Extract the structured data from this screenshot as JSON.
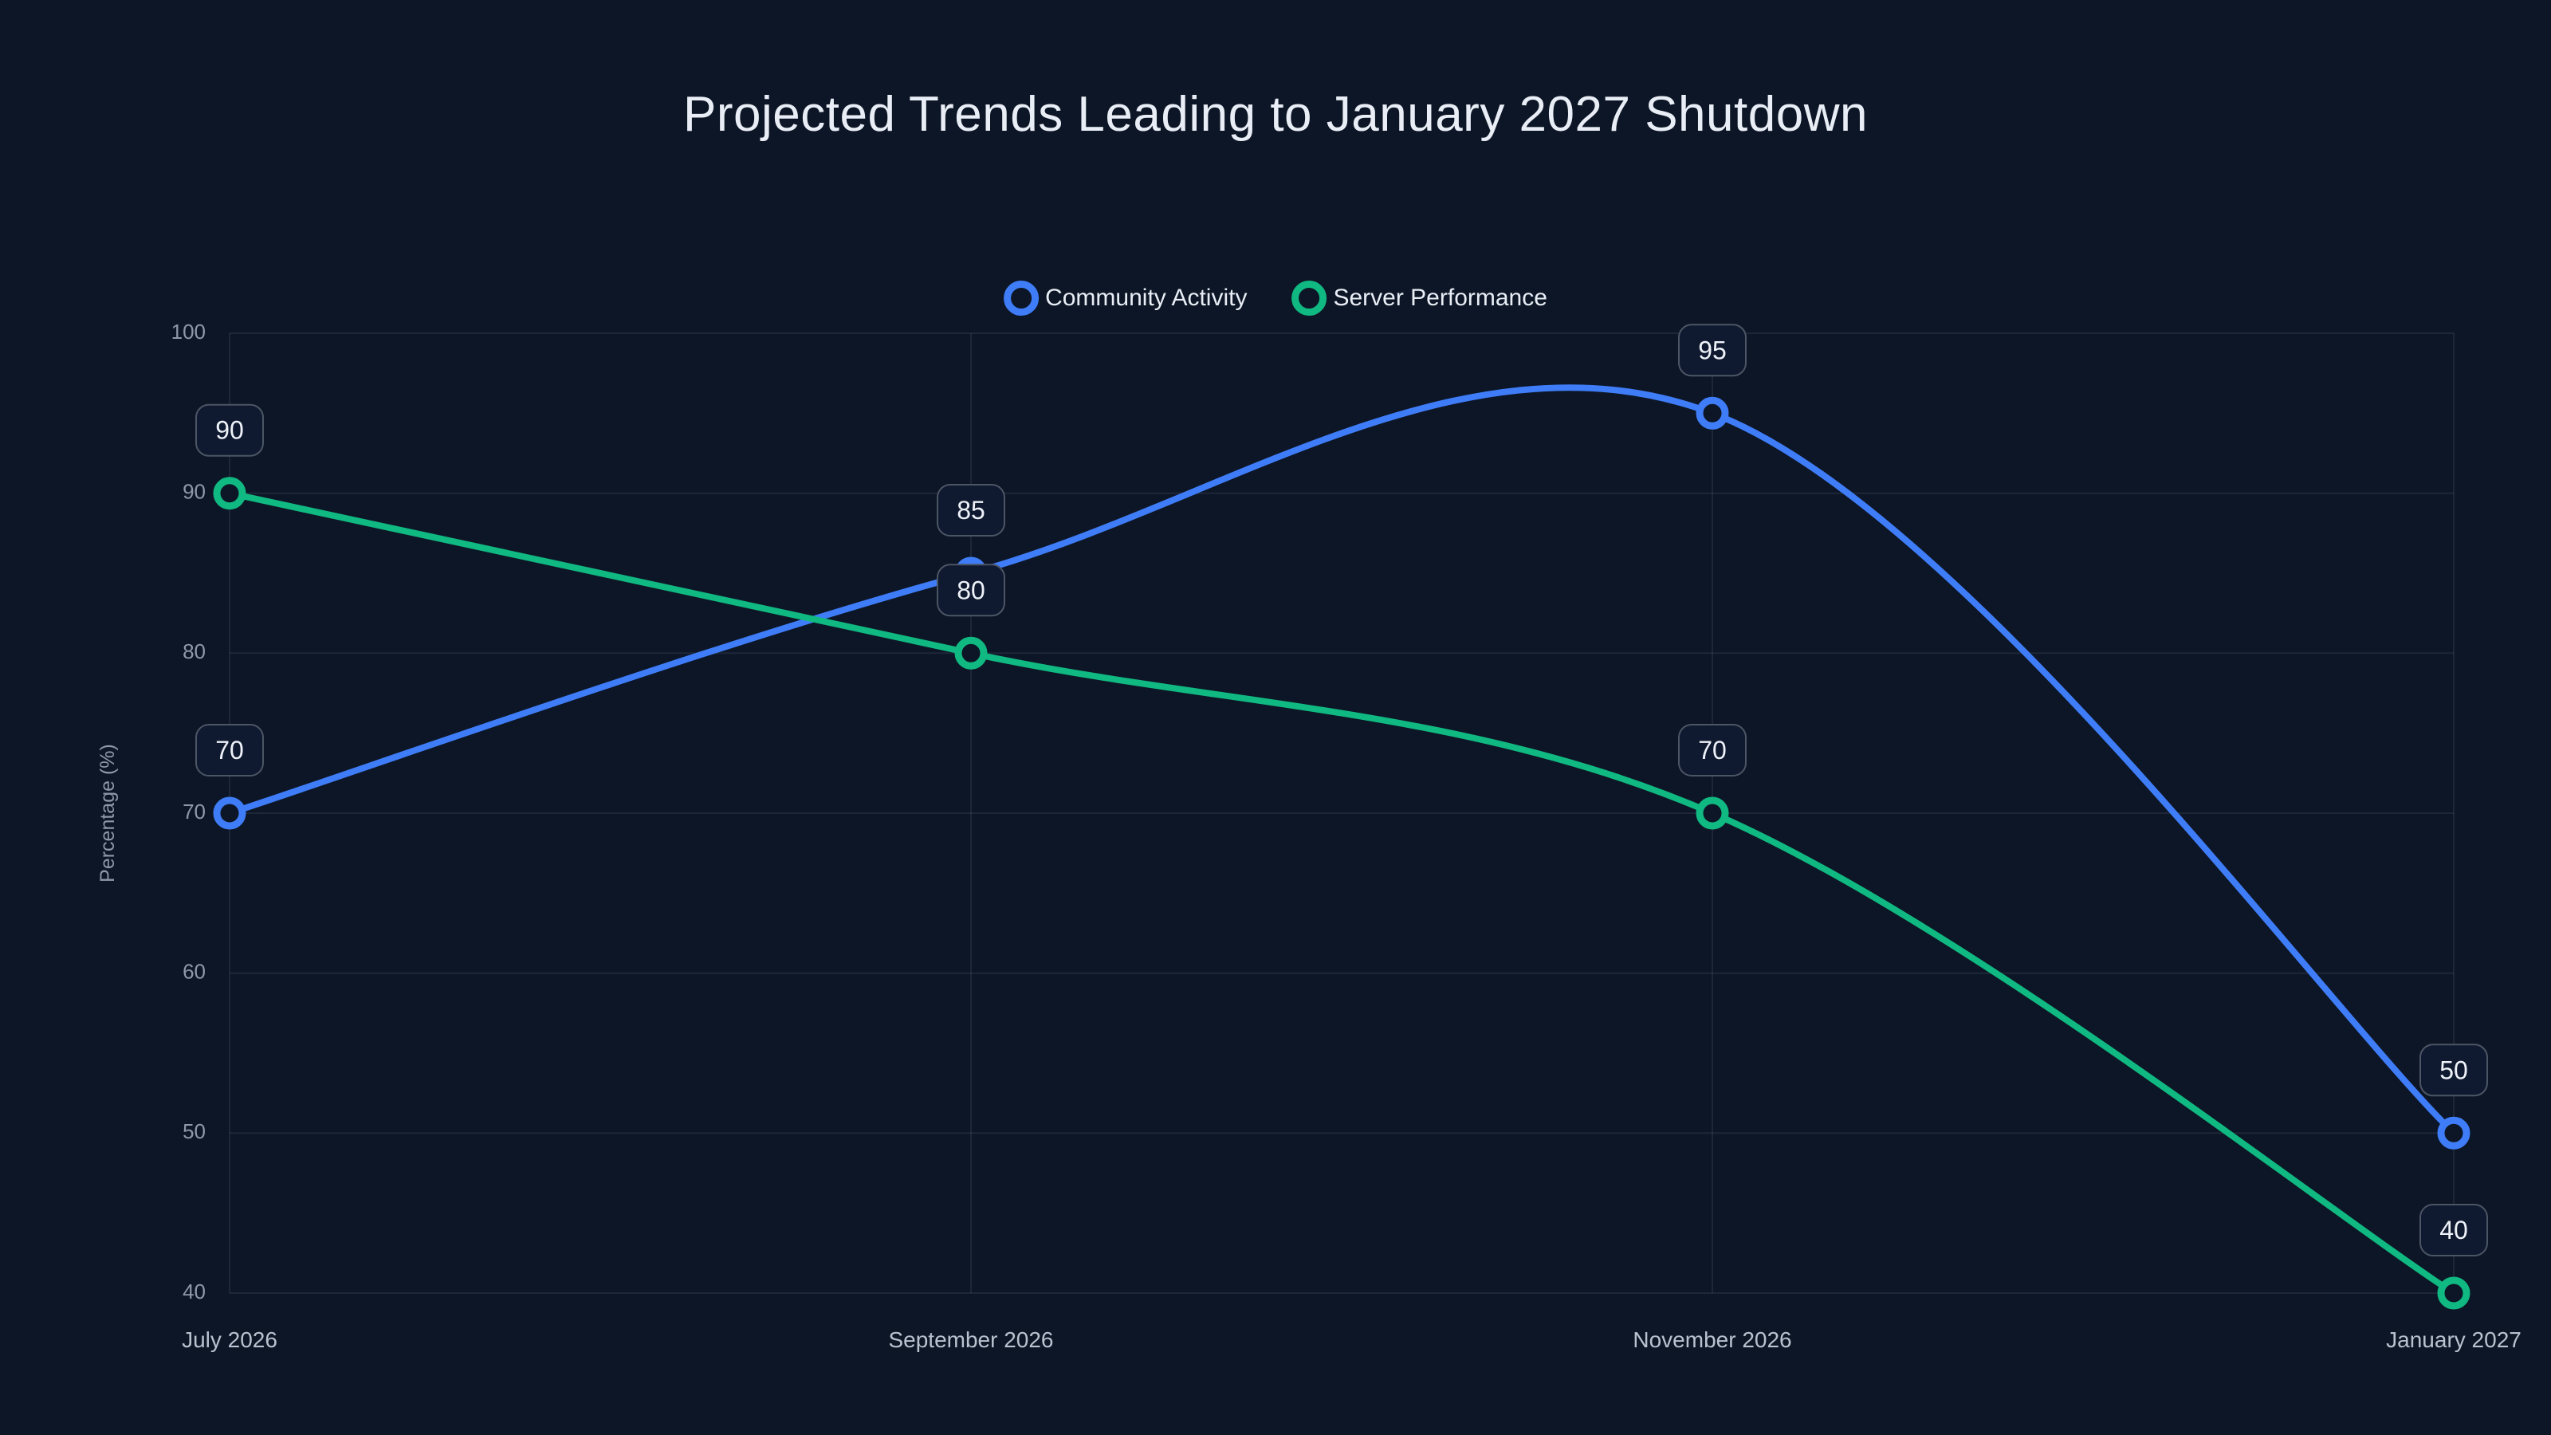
{
  "page": {
    "background_color": "#0d1626",
    "grid_color": "rgba(148,163,184,0.12)",
    "tick_label_color": "#8d98a9",
    "x_label_color": "#b9c2cf",
    "label_box_border_color": "#4b5564",
    "label_box_fill_color": "#0f1930",
    "label_text_color": "#eef2f8"
  },
  "chart_data": {
    "type": "line",
    "title": "Projected Trends Leading to January 2027 Shutdown",
    "categories": [
      "July 2026",
      "September 2026",
      "November 2026",
      "January 2027"
    ],
    "xlabel": "",
    "ylabel": "Percentage (%)",
    "ylim": [
      40,
      100
    ],
    "yticks": [
      40,
      50,
      60,
      70,
      80,
      90,
      100
    ],
    "grid": true,
    "legend_position": "top-center",
    "curve": "smooth",
    "point_labels_visible": true,
    "series": [
      {
        "name": "Community Activity",
        "color": "#3f7df8",
        "values": [
          70,
          85,
          95,
          50
        ]
      },
      {
        "name": "Server Performance",
        "color": "#10b981",
        "values": [
          90,
          80,
          70,
          40
        ]
      }
    ]
  }
}
